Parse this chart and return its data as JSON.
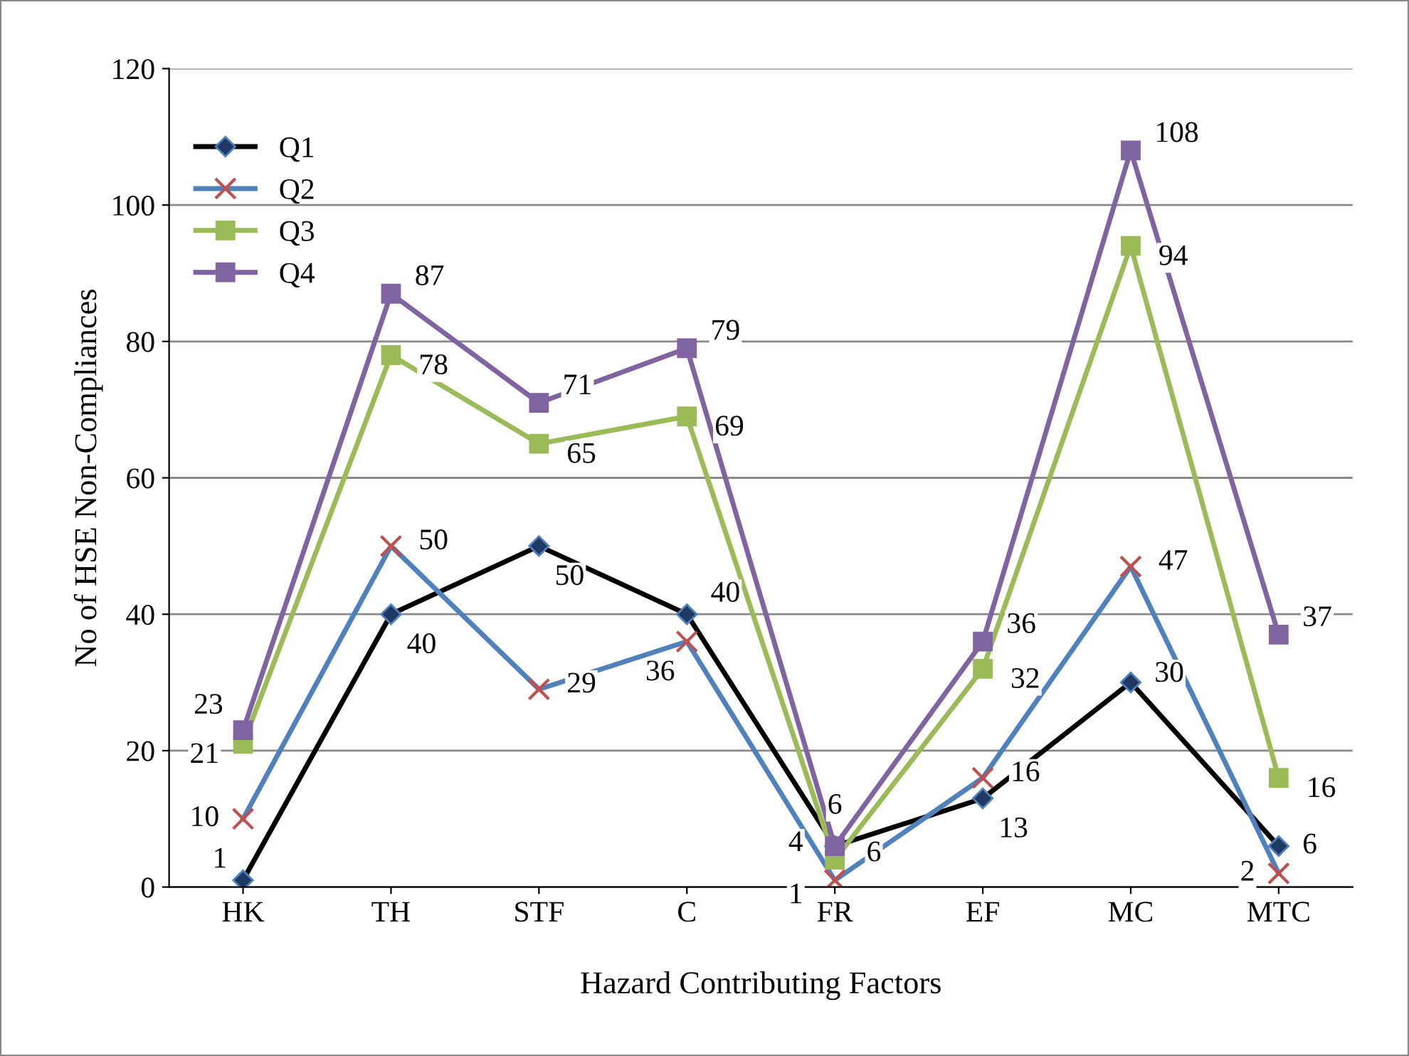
{
  "chart_data": {
    "type": "line",
    "xlabel": "Hazard Contributing Factors",
    "ylabel": "No of HSE Non-Compliances",
    "categories": [
      "HK",
      "TH",
      "STF",
      "C",
      "FR",
      "EF",
      "MC",
      "MTC"
    ],
    "ylim": [
      0,
      120
    ],
    "yticks": [
      0,
      20,
      40,
      60,
      80,
      100,
      120
    ],
    "grid": "y",
    "legend": "top left",
    "data_labels": true,
    "series": [
      {
        "name": "Q1",
        "color": "#000000",
        "marker": "diamond",
        "values": [
          1,
          40,
          50,
          40,
          6,
          13,
          30,
          6
        ]
      },
      {
        "name": "Q2",
        "color": "#4f81bd",
        "marker": "cross",
        "values": [
          10,
          50,
          29,
          36,
          1,
          16,
          47,
          2
        ]
      },
      {
        "name": "Q3",
        "color": "#9bbb59",
        "marker": "square",
        "values": [
          21,
          78,
          65,
          69,
          4,
          32,
          94,
          16
        ]
      },
      {
        "name": "Q4",
        "color": "#8064a2",
        "marker": "square",
        "values": [
          23,
          87,
          71,
          79,
          6,
          36,
          108,
          37
        ]
      }
    ]
  }
}
